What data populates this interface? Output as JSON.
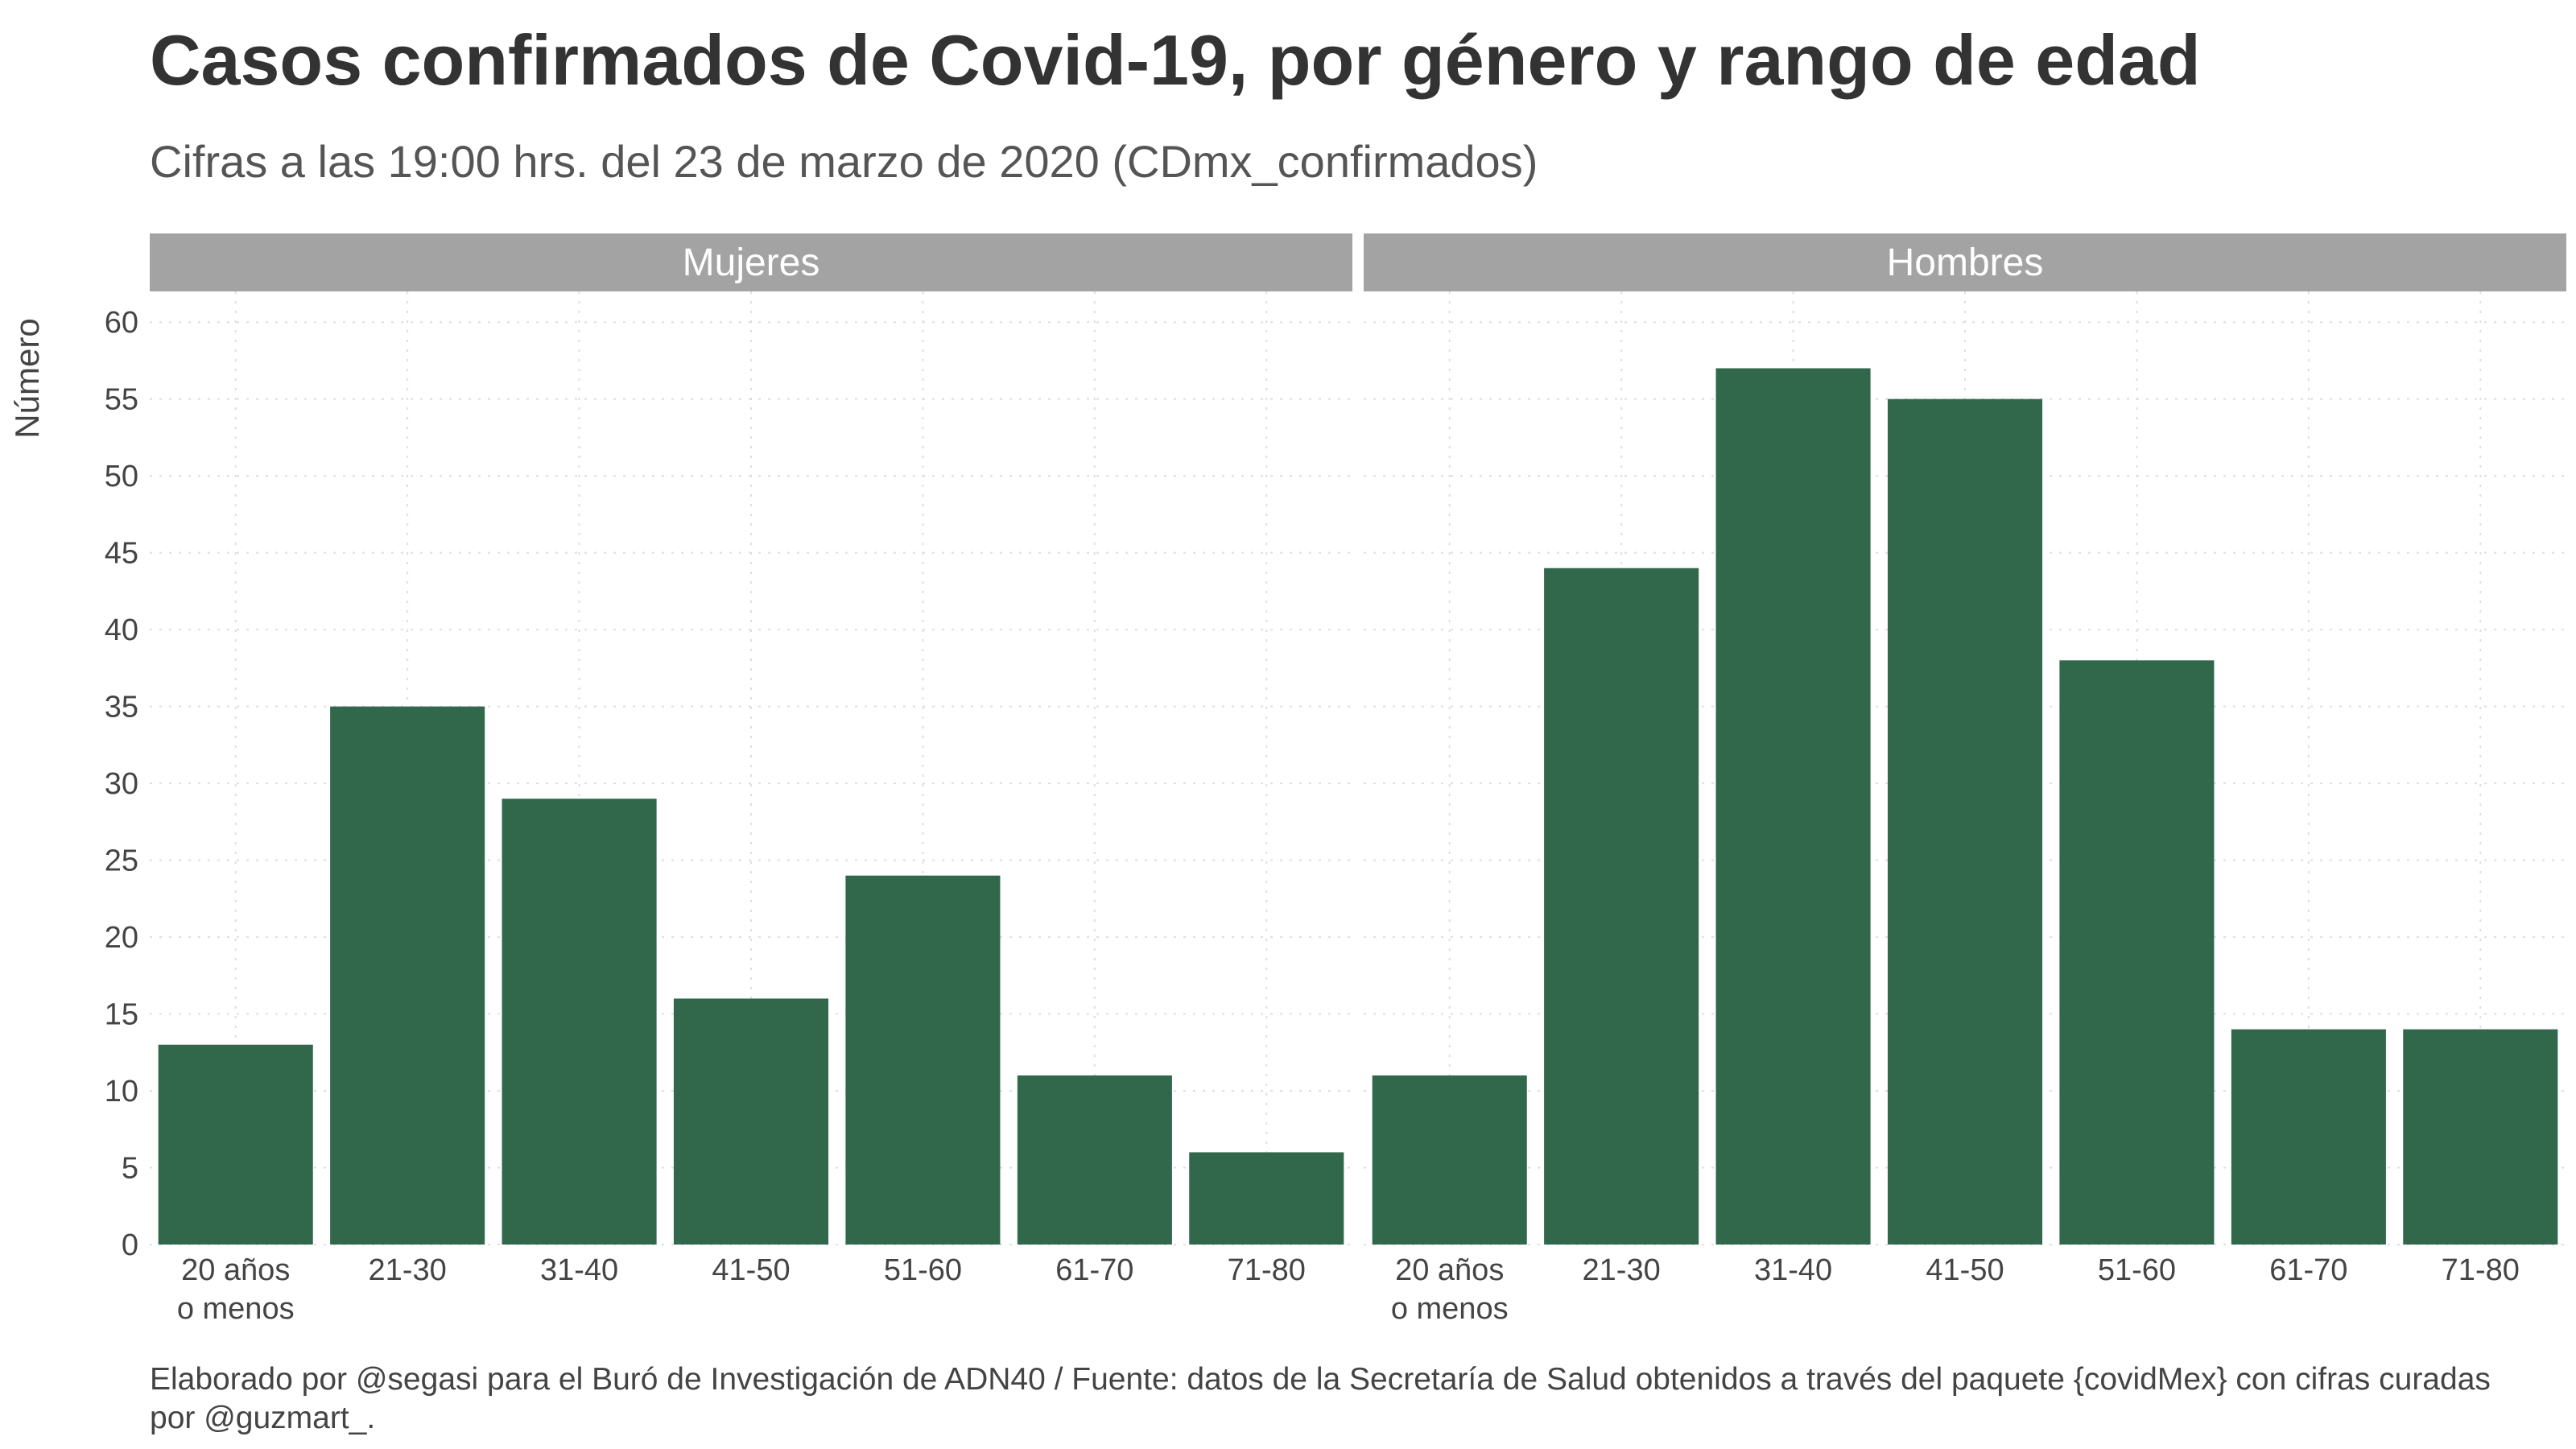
{
  "title": "Casos confirmados de Covid-19, por género y rango de edad",
  "subtitle": "Cifras a las 19:00 hrs. del 23 de marzo de 2020 (CDmx_confirmados)",
  "caption": "Elaborado por @segasi  para el Buró de Investigación de ADN40 / Fuente: datos de la Secretaría de Salud obtenidos a través del paquete {covidMex} con cifras curadas por @guzmart_.",
  "colors": {
    "bar": "#31684c",
    "strip": "#a3a3a3",
    "grid": "#dedede"
  },
  "chart_data": {
    "type": "bar",
    "ylabel": "Número",
    "ylim": [
      0,
      62
    ],
    "yticks": [
      0,
      5,
      10,
      15,
      20,
      25,
      30,
      35,
      40,
      45,
      50,
      55,
      60
    ],
    "categories": [
      "20 años\no menos",
      "21-30",
      "31-40",
      "41-50",
      "51-60",
      "61-70",
      "71-80"
    ],
    "grid": "dotted",
    "panels": [
      {
        "name": "Mujeres",
        "values": [
          13,
          35,
          29,
          16,
          24,
          11,
          6
        ]
      },
      {
        "name": "Hombres",
        "values": [
          11,
          44,
          57,
          55,
          38,
          14,
          14
        ]
      }
    ]
  }
}
